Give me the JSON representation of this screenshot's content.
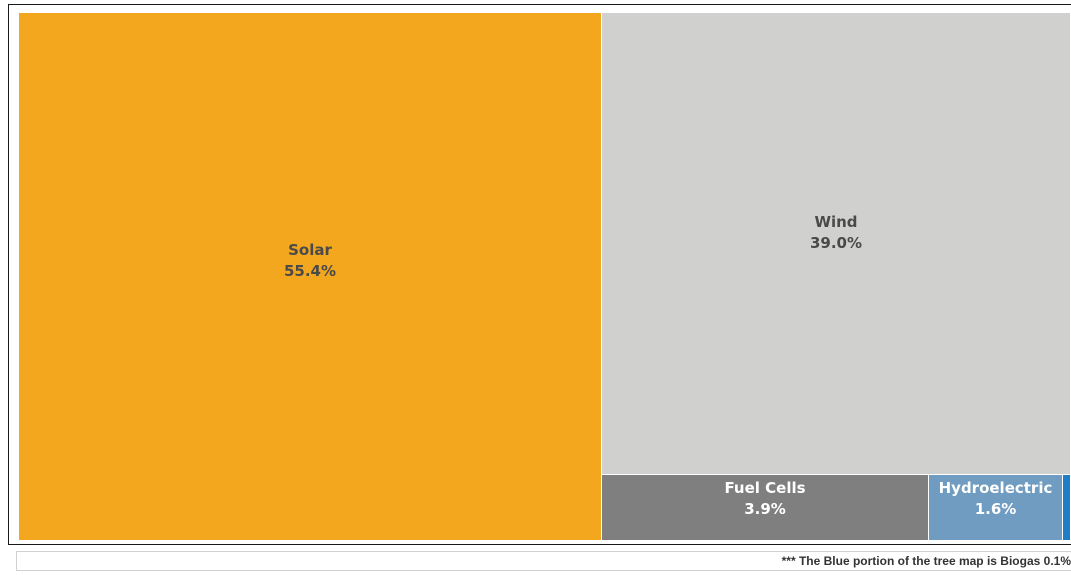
{
  "chart_data": {
    "type": "treemap",
    "title": "",
    "items": [
      {
        "name": "Solar",
        "value": 55.4,
        "label": "55.4%",
        "color": "#F2A71E",
        "text_color": "#4a4a4a"
      },
      {
        "name": "Wind",
        "value": 39.0,
        "label": "39.0%",
        "color": "#D0D0CE",
        "text_color": "#4a4a4a"
      },
      {
        "name": "Fuel Cells",
        "value": 3.9,
        "label": "3.9%",
        "color": "#7F7F7F",
        "text_color": "#ffffff"
      },
      {
        "name": "Hydroelectric",
        "value": 1.6,
        "label": "1.6%",
        "color": "#6F9CC0",
        "text_color": "#ffffff"
      },
      {
        "name": "Biogas",
        "value": 0.1,
        "label": "",
        "color": "#1F7DC6",
        "text_color": "#ffffff"
      }
    ]
  },
  "footnote": "*** The Blue portion of the tree map is Biogas 0.1%"
}
